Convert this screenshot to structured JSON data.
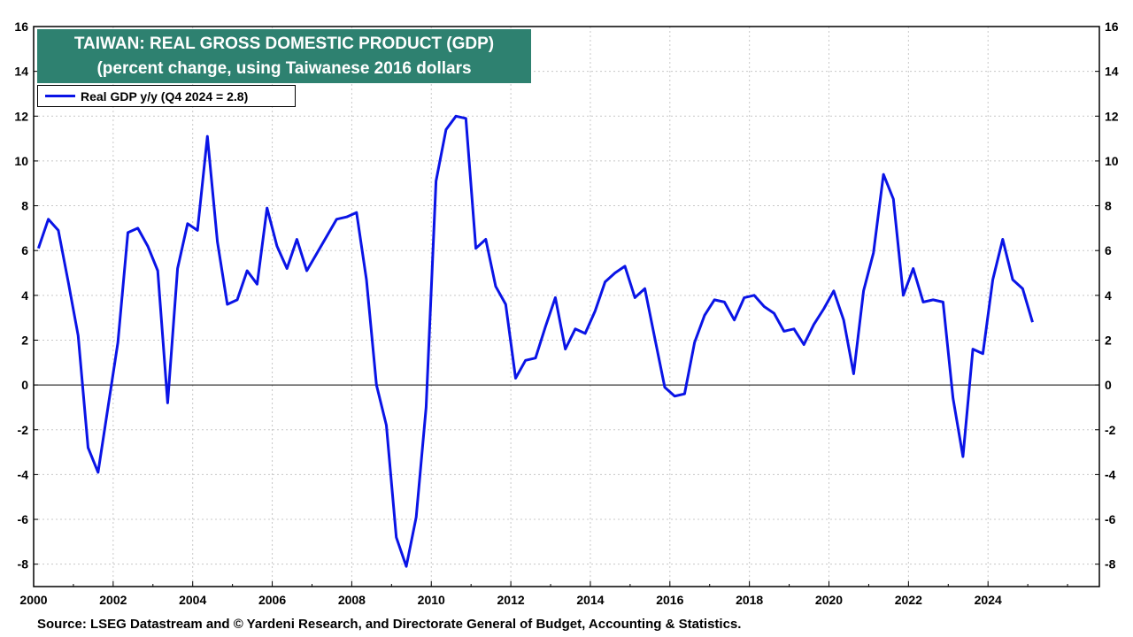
{
  "chart_data": {
    "type": "line",
    "title": "TAIWAN: REAL GROSS DOMESTIC PRODUCT (GDP)",
    "subtitle": "(percent change,  using Taiwanese 2016 dollars",
    "legend_placement": "top-left",
    "grid": true,
    "x_range": [
      2000,
      2026.8
    ],
    "ylim": [
      -9,
      16
    ],
    "y_ticks": [
      -8,
      -6,
      -4,
      -2,
      0,
      2,
      4,
      6,
      8,
      10,
      12,
      14,
      16
    ],
    "x_ticks": [
      2000,
      2002,
      2004,
      2006,
      2008,
      2010,
      2012,
      2014,
      2016,
      2018,
      2020,
      2022,
      2024
    ],
    "color": "#0a14e6",
    "series": [
      {
        "name": "Real GDP y/y (Q4 2024 = 2.8)",
        "points": [
          [
            2000.12,
            6.1
          ],
          [
            2000.37,
            7.4
          ],
          [
            2000.62,
            6.9
          ],
          [
            2000.87,
            4.6
          ],
          [
            2001.12,
            2.2
          ],
          [
            2001.37,
            -2.8
          ],
          [
            2001.62,
            -3.9
          ],
          [
            2001.87,
            -1.0
          ],
          [
            2002.12,
            1.9
          ],
          [
            2002.37,
            6.8
          ],
          [
            2002.62,
            7.0
          ],
          [
            2002.87,
            6.2
          ],
          [
            2003.12,
            5.1
          ],
          [
            2003.37,
            -0.8
          ],
          [
            2003.62,
            5.2
          ],
          [
            2003.87,
            7.2
          ],
          [
            2004.12,
            6.9
          ],
          [
            2004.37,
            11.1
          ],
          [
            2004.62,
            6.4
          ],
          [
            2004.87,
            3.6
          ],
          [
            2005.12,
            3.8
          ],
          [
            2005.37,
            5.1
          ],
          [
            2005.62,
            4.5
          ],
          [
            2005.87,
            7.9
          ],
          [
            2006.12,
            6.2
          ],
          [
            2006.37,
            5.2
          ],
          [
            2006.62,
            6.5
          ],
          [
            2006.87,
            5.1
          ],
          [
            2007.62,
            7.4
          ],
          [
            2007.87,
            7.5
          ],
          [
            2008.12,
            7.7
          ],
          [
            2008.37,
            4.7
          ],
          [
            2008.62,
            0.0
          ],
          [
            2008.87,
            -1.8
          ],
          [
            2009.12,
            -6.8
          ],
          [
            2009.37,
            -8.1
          ],
          [
            2009.62,
            -5.9
          ],
          [
            2009.87,
            -1.0
          ],
          [
            2010.12,
            9.1
          ],
          [
            2010.37,
            11.4
          ],
          [
            2010.62,
            12.0
          ],
          [
            2010.87,
            11.9
          ],
          [
            2011.12,
            6.1
          ],
          [
            2011.37,
            6.5
          ],
          [
            2011.62,
            4.4
          ],
          [
            2011.87,
            3.6
          ],
          [
            2012.12,
            0.3
          ],
          [
            2012.37,
            1.1
          ],
          [
            2012.62,
            1.2
          ],
          [
            2012.87,
            2.6
          ],
          [
            2013.12,
            3.9
          ],
          [
            2013.37,
            1.6
          ],
          [
            2013.62,
            2.5
          ],
          [
            2013.87,
            2.3
          ],
          [
            2014.12,
            3.3
          ],
          [
            2014.37,
            4.6
          ],
          [
            2014.62,
            5.0
          ],
          [
            2014.87,
            5.3
          ],
          [
            2015.12,
            3.9
          ],
          [
            2015.37,
            4.3
          ],
          [
            2015.62,
            2.1
          ],
          [
            2015.87,
            -0.1
          ],
          [
            2016.12,
            -0.5
          ],
          [
            2016.37,
            -0.4
          ],
          [
            2016.62,
            1.9
          ],
          [
            2016.87,
            3.1
          ],
          [
            2017.12,
            3.8
          ],
          [
            2017.37,
            3.7
          ],
          [
            2017.62,
            2.9
          ],
          [
            2017.87,
            3.9
          ],
          [
            2018.12,
            4.0
          ],
          [
            2018.37,
            3.5
          ],
          [
            2018.62,
            3.2
          ],
          [
            2018.87,
            2.4
          ],
          [
            2019.12,
            2.5
          ],
          [
            2019.37,
            1.8
          ],
          [
            2019.62,
            2.7
          ],
          [
            2019.87,
            3.4
          ],
          [
            2020.12,
            4.2
          ],
          [
            2020.37,
            2.9
          ],
          [
            2020.62,
            0.5
          ],
          [
            2020.87,
            4.2
          ],
          [
            2021.12,
            5.9
          ],
          [
            2021.37,
            9.4
          ],
          [
            2021.62,
            8.3
          ],
          [
            2021.87,
            4.0
          ],
          [
            2022.12,
            5.2
          ],
          [
            2022.37,
            3.7
          ],
          [
            2022.62,
            3.8
          ],
          [
            2022.87,
            3.7
          ],
          [
            2023.12,
            -0.6
          ],
          [
            2023.37,
            -3.2
          ],
          [
            2023.62,
            1.6
          ],
          [
            2023.87,
            1.4
          ],
          [
            2024.12,
            4.7
          ],
          [
            2024.37,
            6.5
          ],
          [
            2024.62,
            4.7
          ],
          [
            2024.87,
            4.3
          ],
          [
            2025.12,
            2.8
          ]
        ]
      }
    ]
  },
  "source_text": "Source: LSEG Datastream and © Yardeni Research, and Directorate General of Budget, Accounting & Statistics."
}
